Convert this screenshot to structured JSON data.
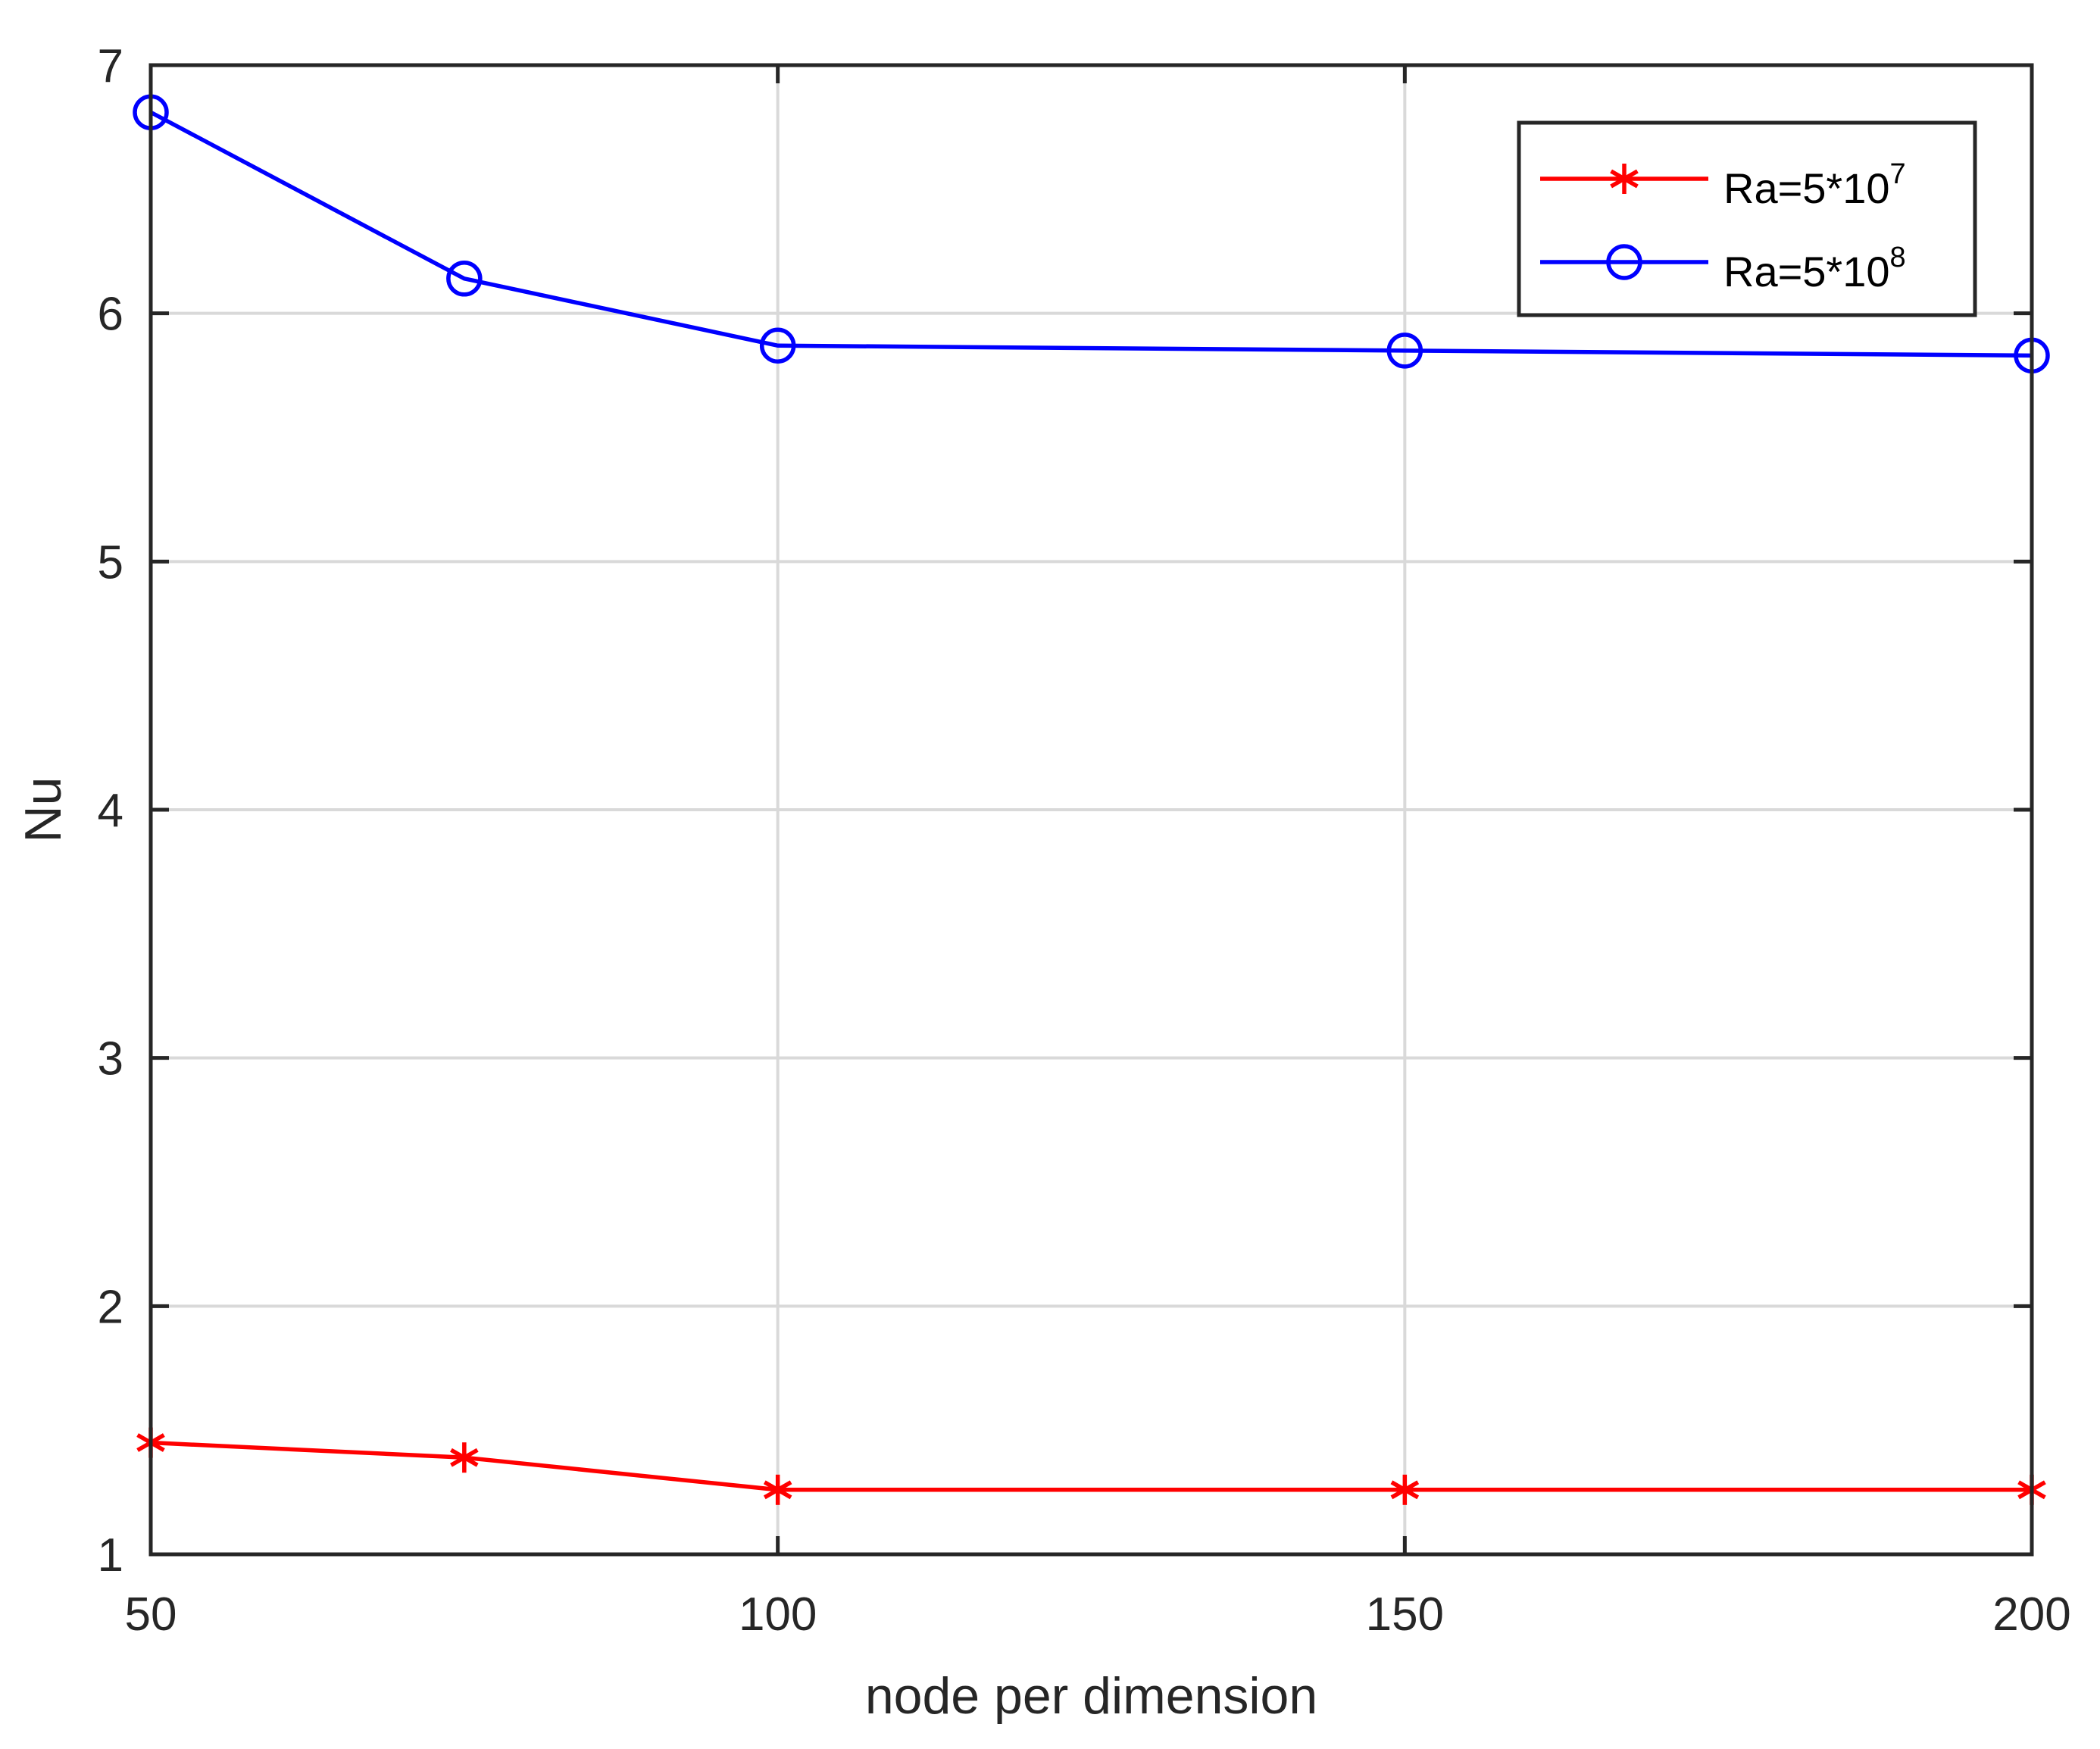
{
  "chart_data": {
    "type": "line",
    "xlabel": "node per dimension",
    "ylabel": "Nu",
    "xlim": [
      50,
      200
    ],
    "ylim": [
      1,
      7
    ],
    "xticks": [
      50,
      100,
      150,
      200
    ],
    "yticks": [
      1,
      2,
      3,
      4,
      5,
      6,
      7
    ],
    "xtick_labels": [
      "50",
      "100",
      "150",
      "200"
    ],
    "ytick_labels": [
      "1",
      "2",
      "3",
      "4",
      "5",
      "6",
      "7"
    ],
    "grid": true,
    "legend_position": "top-right",
    "series": [
      {
        "name": "Ra=5*10^7",
        "legend_base": "Ra=5*10",
        "legend_exp": "7",
        "color": "#ff0000",
        "marker": "asterisk",
        "x": [
          50,
          75,
          100,
          150,
          200
        ],
        "y": [
          1.45,
          1.39,
          1.26,
          1.26,
          1.26
        ]
      },
      {
        "name": "Ra=5*10^8",
        "legend_base": "Ra=5*10",
        "legend_exp": "8",
        "color": "#0000ff",
        "marker": "circle",
        "x": [
          50,
          75,
          100,
          150,
          200
        ],
        "y": [
          6.81,
          6.14,
          5.87,
          5.85,
          5.83
        ]
      }
    ]
  }
}
